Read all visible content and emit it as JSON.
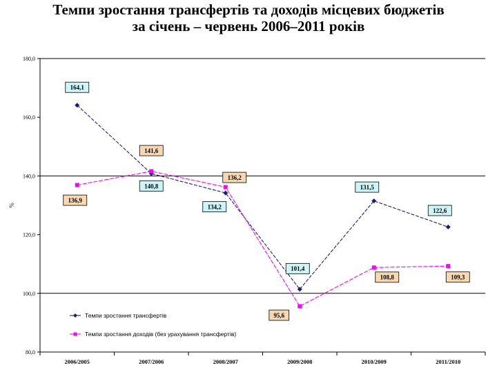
{
  "chart_data": {
    "type": "line",
    "title_line1": "Темпи зростання трансфертів та доходів місцевих бюджетів",
    "title_line2": "за січень – червень 2006–2011 років",
    "ylabel": "%",
    "ylim": [
      80,
      180
    ],
    "yticks": [
      80,
      100,
      120,
      140,
      160,
      180
    ],
    "ytick_labels": [
      "80,0",
      "100,0",
      "120,0",
      "140,0",
      "160,0",
      "180,0"
    ],
    "gridlines": [
      100,
      140,
      180
    ],
    "categories": [
      "2006/2005",
      "2007/2006",
      "2008/2007",
      "2009/2008",
      "2010/2009",
      "2011/2010"
    ],
    "series": [
      {
        "name": "Темпи зростання трансфертів",
        "color": "#1a1a80",
        "marker": "diamond",
        "values": [
          164.1,
          140.8,
          134.2,
          101.4,
          131.5,
          122.6
        ],
        "labels": [
          "164,1",
          "140,8",
          "134,2",
          "101,4",
          "131,5",
          "122,6"
        ],
        "label_bg": "#ccf5f8"
      },
      {
        "name": "Темпи зростання доходів (без урахування трансфертів)",
        "color": "#ff00ff",
        "marker": "square",
        "values": [
          136.9,
          141.6,
          136.2,
          95.6,
          108.8,
          109.3
        ],
        "labels": [
          "136,9",
          "141,6",
          "136,2",
          "95,6",
          "108,8",
          "109,3"
        ],
        "label_bg": "#f8d8b0"
      }
    ],
    "legend_position": "bottom-left"
  }
}
